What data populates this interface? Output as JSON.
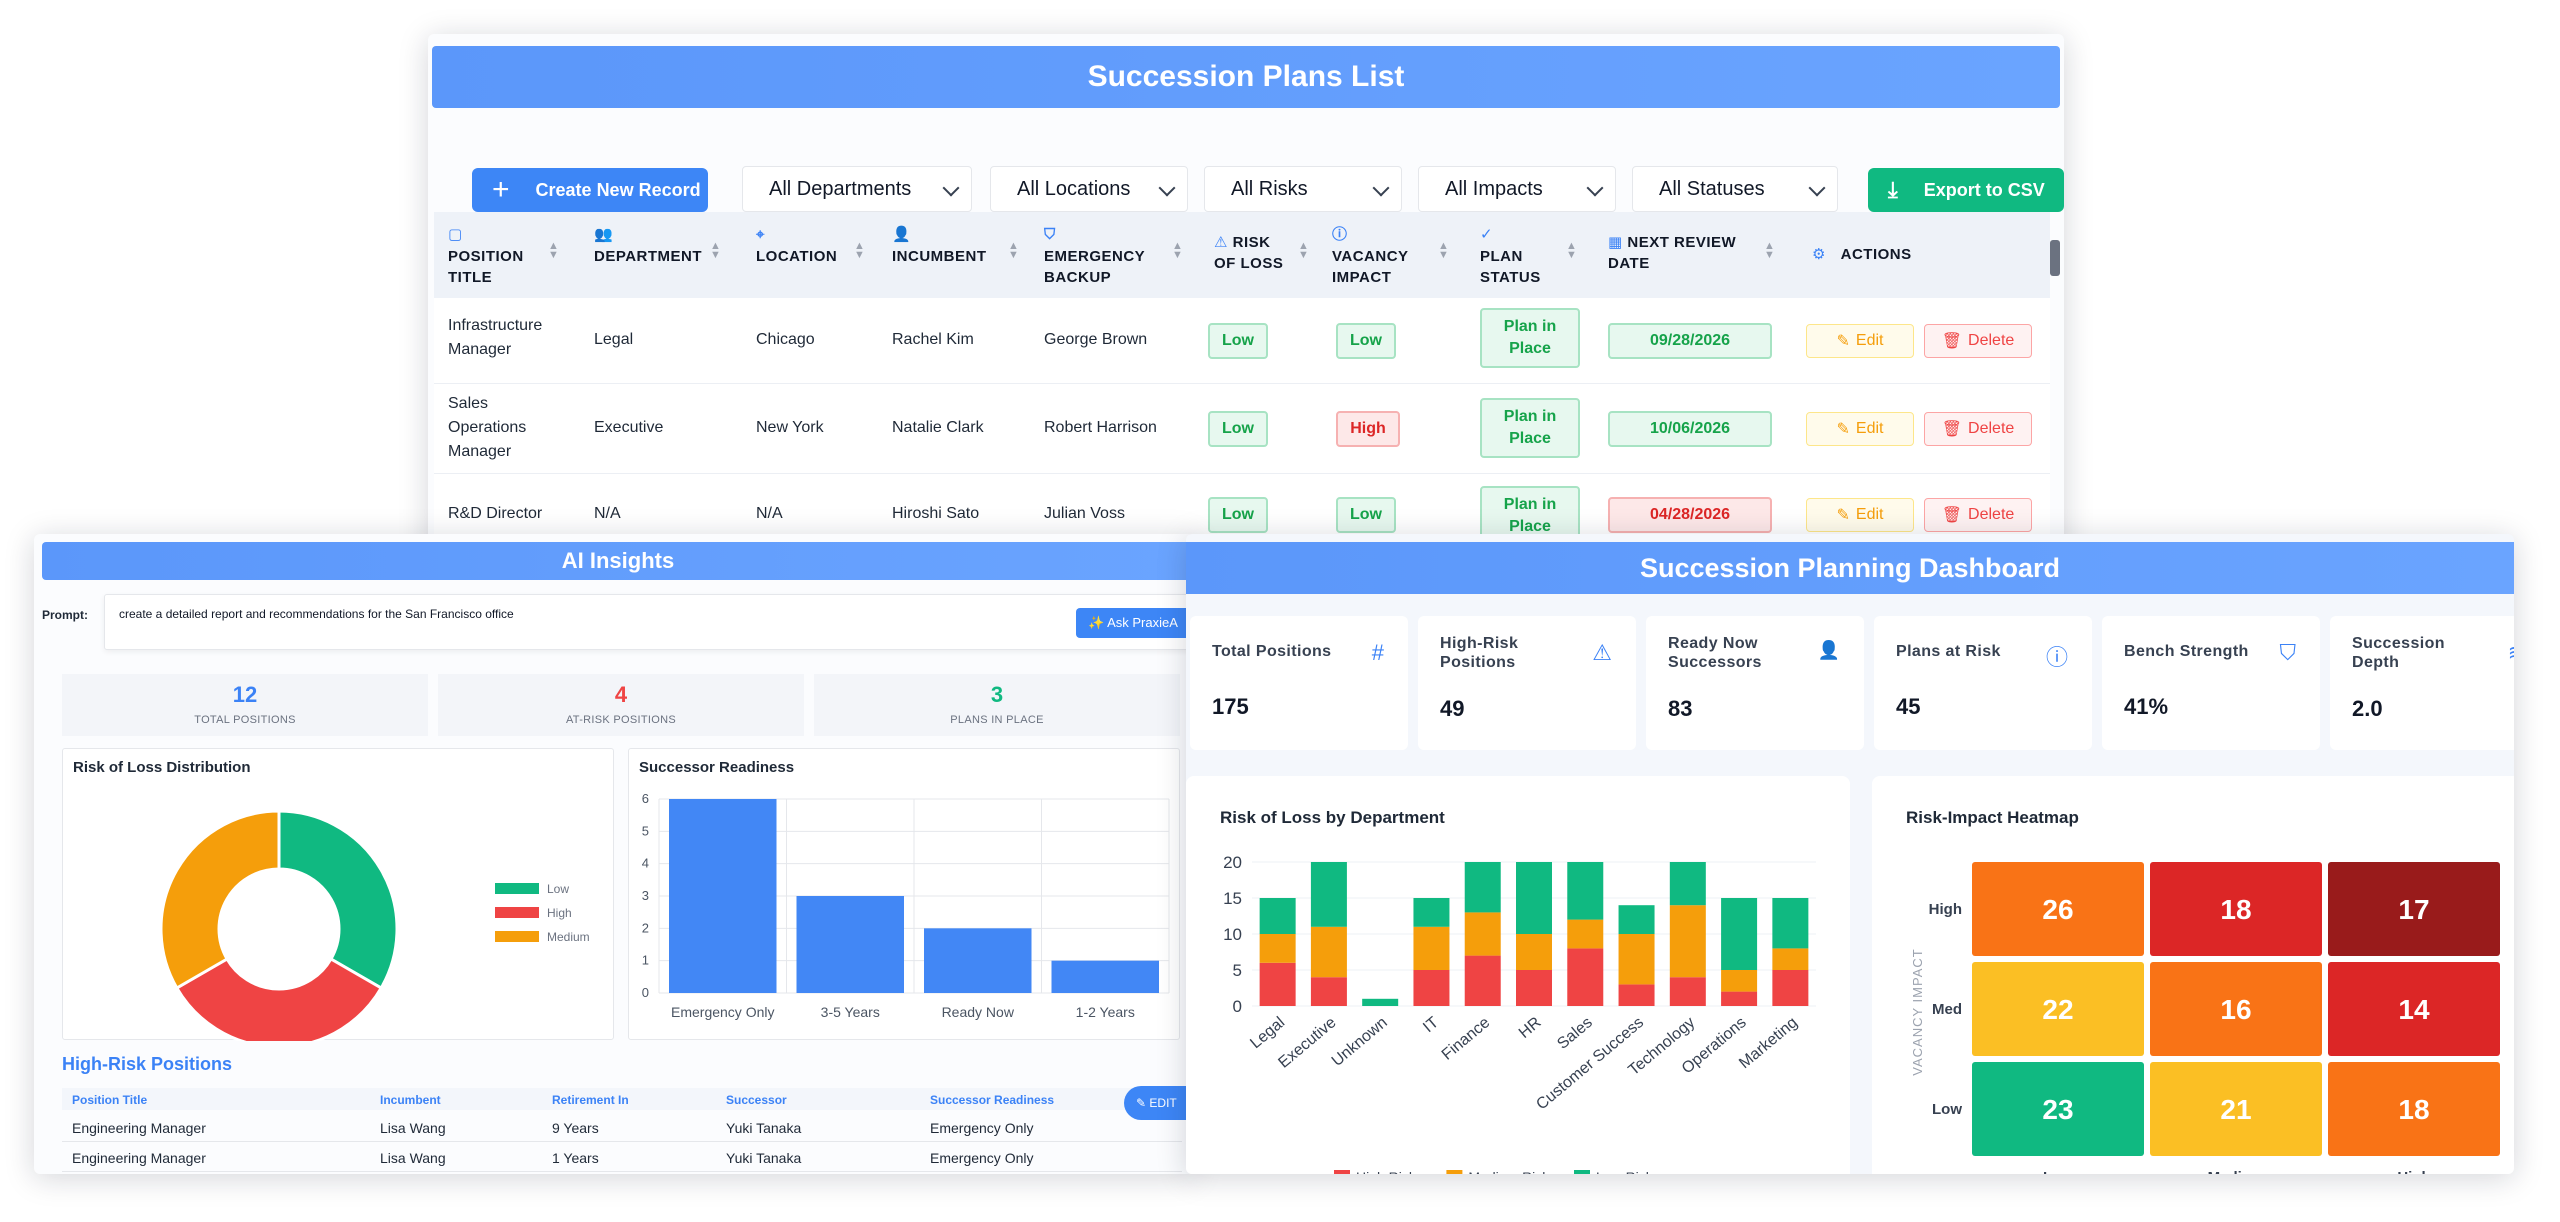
{
  "list": {
    "title": "Succession Plans List",
    "create_label": "Create New Record",
    "export_label": "Export to CSV",
    "filters": [
      "All Departments",
      "All Locations",
      "All Risks",
      "All Impacts",
      "All Statuses"
    ],
    "headers": {
      "position": [
        "POSITION",
        "TITLE"
      ],
      "department": [
        "DEPARTMENT"
      ],
      "location": [
        "LOCATION"
      ],
      "incumbent": [
        "INCUMBENT"
      ],
      "backup": [
        "EMERGENCY",
        "BACKUP"
      ],
      "risk": [
        "RISK",
        "OF LOSS"
      ],
      "impact": [
        "VACANCY",
        "IMPACT"
      ],
      "status": [
        "PLAN",
        "STATUS"
      ],
      "review": [
        "NEXT REVIEW",
        "DATE"
      ],
      "actions": "ACTIONS"
    },
    "edit_label": "Edit",
    "delete_label": "Delete",
    "rows": [
      {
        "position": [
          "Infrastructure",
          "Manager"
        ],
        "department": "Legal",
        "location": "Chicago",
        "incumbent": "Rachel Kim",
        "backup": "George Brown",
        "risk": "Low",
        "impact": "Low",
        "status": [
          "Plan in",
          "Place"
        ],
        "review": "09/28/2026",
        "review_overdue": false
      },
      {
        "position": [
          "Sales",
          "Operations",
          "Manager"
        ],
        "department": "Executive",
        "location": "New York",
        "incumbent": "Natalie Clark",
        "backup": "Robert Harrison",
        "risk": "Low",
        "impact": "High",
        "status": [
          "Plan in",
          "Place"
        ],
        "review": "10/06/2026",
        "review_overdue": false
      },
      {
        "position": [
          "R&D Director"
        ],
        "department": "N/A",
        "location": "N/A",
        "incumbent": "Hiroshi Sato",
        "backup": "Julian Voss",
        "risk": "Low",
        "impact": "Low",
        "status": [
          "Plan in",
          "Place"
        ],
        "review": "04/28/2026",
        "review_overdue": true
      }
    ]
  },
  "ai": {
    "title": "AI Insights",
    "prompt_label": "Prompt:",
    "prompt_value": "create a detailed report and recommendations for the San Francisco office",
    "ask_label": "Ask PraxieA",
    "kpis": [
      {
        "value": "12",
        "label": "TOTAL POSITIONS",
        "color": "#3b82f6"
      },
      {
        "value": "4",
        "label": "AT-RISK POSITIONS",
        "color": "#ef4444"
      },
      {
        "value": "3",
        "label": "PLANS IN PLACE",
        "color": "#10b981"
      }
    ],
    "donut_title": "Risk of Loss Distribution",
    "readiness_title": "Successor Readiness",
    "high_risk_title": "High-Risk Positions",
    "table_headers": [
      "Position Title",
      "Incumbent",
      "Retirement In",
      "Successor",
      "Successor Readiness"
    ],
    "table_rows": [
      [
        "Engineering Manager",
        "Lisa Wang",
        "9 Years",
        "Yuki Tanaka",
        "Emergency Only"
      ],
      [
        "Engineering Manager",
        "Lisa Wang",
        "1 Years",
        "Yuki Tanaka",
        "Emergency Only"
      ]
    ],
    "edit_label": "EDIT"
  },
  "dashboard": {
    "title": "Succession Planning Dashboard",
    "stats": [
      {
        "title": "Total Positions",
        "value": "175",
        "icon": "hash-icon",
        "glyph": "#"
      },
      {
        "title": "High-Risk Positions",
        "value": "49",
        "icon": "warning-icon",
        "glyph": "⚠"
      },
      {
        "title": "Ready Now Successors",
        "value": "83",
        "icon": "user-check-icon",
        "glyph": "👤"
      },
      {
        "title": "Plans at Risk",
        "value": "45",
        "icon": "alert-circle-icon",
        "glyph": "ⓘ"
      },
      {
        "title": "Bench Strength",
        "value": "41%",
        "icon": "shield-icon",
        "glyph": "⛉"
      },
      {
        "title": "Succession Depth",
        "value": "2.0",
        "icon": "layers-icon",
        "glyph": "≋"
      }
    ],
    "bar_title": "Risk of Loss by Department",
    "heatmap_title": "Risk-Impact Heatmap",
    "heatmap_ylabel": "VACANCY IMPACT"
  },
  "chart_data": [
    {
      "type": "pie",
      "title": "Risk of Loss Distribution",
      "categories": [
        "Low",
        "High",
        "Medium"
      ],
      "values": [
        4,
        4,
        4
      ],
      "colors": [
        "#10b981",
        "#ef4444",
        "#f59e0b"
      ],
      "legend": "right"
    },
    {
      "type": "bar",
      "title": "Successor Readiness",
      "categories": [
        "Emergency Only",
        "3-5 Years",
        "Ready Now",
        "1-2 Years"
      ],
      "values": [
        6,
        3,
        2,
        1
      ],
      "ylim": [
        0,
        6
      ],
      "yticks": [
        0,
        1,
        2,
        3,
        4,
        5,
        6
      ],
      "color": "#4287f5",
      "grid": true
    },
    {
      "type": "bar",
      "title": "Risk of Loss by Department",
      "stacked": true,
      "categories": [
        "Legal",
        "Executive",
        "Unknown",
        "IT",
        "Finance",
        "HR",
        "Sales",
        "Customer Success",
        "Technology",
        "Operations",
        "Marketing"
      ],
      "series": [
        {
          "name": "High Risk",
          "values": [
            6,
            4,
            0,
            5,
            7,
            5,
            8,
            3,
            4,
            2,
            5
          ],
          "color": "#ef4444"
        },
        {
          "name": "Medium Risk",
          "values": [
            4,
            7,
            0,
            6,
            6,
            5,
            4,
            7,
            10,
            3,
            3
          ],
          "color": "#f59e0b"
        },
        {
          "name": "Low Risk",
          "values": [
            5,
            9,
            1,
            4,
            7,
            10,
            8,
            4,
            6,
            10,
            7
          ],
          "color": "#10b981"
        }
      ],
      "ylim": [
        0,
        20
      ],
      "yticks": [
        0,
        5,
        10,
        15,
        20
      ],
      "legend": "bottom"
    },
    {
      "type": "heatmap",
      "title": "Risk-Impact Heatmap",
      "ylabel": "VACANCY IMPACT",
      "x_categories": [
        "Low",
        "Medium",
        "High"
      ],
      "y_categories": [
        "High",
        "Med",
        "Low"
      ],
      "values": [
        [
          26,
          18,
          17
        ],
        [
          22,
          16,
          14
        ],
        [
          23,
          21,
          18
        ]
      ],
      "colors": [
        [
          "#f97316",
          "#dc2626",
          "#991b1b"
        ],
        [
          "#fbbf24",
          "#f97316",
          "#dc2626"
        ],
        [
          "#10b981",
          "#fbbf24",
          "#f97316"
        ]
      ]
    }
  ]
}
